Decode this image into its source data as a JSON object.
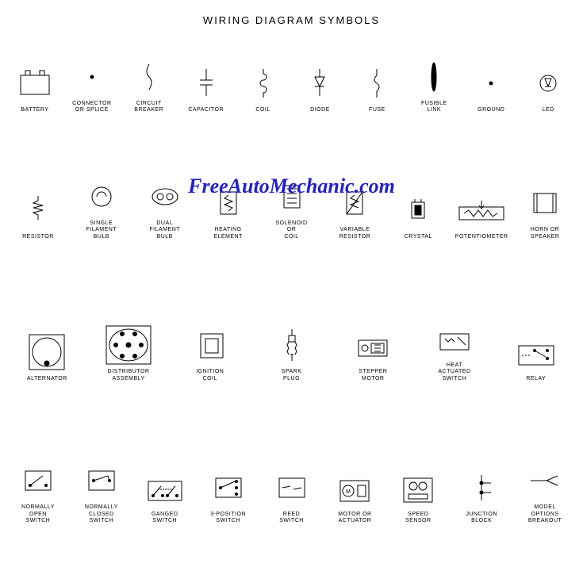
{
  "title": "WIRING DIAGRAM SYMBOLS",
  "watermark": "FreeAutoMechanic.com",
  "watermark_color": "#2020d0",
  "background_color": "#ffffff",
  "stroke_color": "#000000",
  "label_fontsize": 7,
  "title_fontsize": 13,
  "watermark_fontsize": 26,
  "rows": [
    {
      "gap": "sm",
      "items": [
        {
          "id": "battery",
          "label": "BATTERY",
          "svg": "battery"
        },
        {
          "id": "connector",
          "label": "CONNECTOR\nOR SPLICE",
          "svg": "dot"
        },
        {
          "id": "circuit-breaker",
          "label": "CIRCUIT\nBREAKER",
          "svg": "breaker"
        },
        {
          "id": "capacitor",
          "label": "CAPACITOR",
          "svg": "capacitor"
        },
        {
          "id": "coil",
          "label": "COIL",
          "svg": "coil"
        },
        {
          "id": "diode",
          "label": "DIODE",
          "svg": "diode"
        },
        {
          "id": "fuse",
          "label": "FUSE",
          "svg": "fuse"
        },
        {
          "id": "fusible-link",
          "label": "FUSIBLE\nLINK",
          "svg": "fusible"
        },
        {
          "id": "ground",
          "label": "GROUND",
          "svg": "dot"
        },
        {
          "id": "led",
          "label": "LED",
          "svg": "led"
        }
      ]
    },
    {
      "gap": "md",
      "items": [
        {
          "id": "resistor",
          "label": "RESISTOR",
          "svg": "resistor"
        },
        {
          "id": "single-filament",
          "label": "SINGLE\nFILAMENT\nBULB",
          "svg": "bulb1"
        },
        {
          "id": "dual-filament",
          "label": "DUAL\nFILAMENT\nBULB",
          "svg": "bulb2"
        },
        {
          "id": "heating-element",
          "label": "HEATING\nELEMENT",
          "svg": "heater"
        },
        {
          "id": "solenoid",
          "label": "SOLENOID\nOR\nCOIL",
          "svg": "solenoid"
        },
        {
          "id": "variable-resistor",
          "label": "VARIABLE\nRESISTOR",
          "svg": "varres"
        },
        {
          "id": "crystal",
          "label": "CRYSTAL",
          "svg": "crystal"
        },
        {
          "id": "potentiometer",
          "label": "POTENTIOMETER",
          "svg": "pot"
        },
        {
          "id": "horn-speaker",
          "label": "HORN OR\nSPEAKER",
          "svg": "speaker"
        }
      ]
    },
    {
      "gap": "lg",
      "items": [
        {
          "id": "alternator",
          "label": "ALTERNATOR",
          "svg": "alternator"
        },
        {
          "id": "distributor",
          "label": "DISTRIBUTOR\nASSEMBLY",
          "svg": "distributor"
        },
        {
          "id": "ignition-coil",
          "label": "IGNITION\nCOIL",
          "svg": "igncoil"
        },
        {
          "id": "spark-plug",
          "label": "SPARK\nPLUG",
          "svg": "sparkplug"
        },
        {
          "id": "stepper-motor",
          "label": "STEPPER\nMOTOR",
          "svg": "stepper"
        },
        {
          "id": "heat-actuated",
          "label": "HEAT\nACTUATED\nSWITCH",
          "svg": "heatsw"
        },
        {
          "id": "relay",
          "label": "RELAY",
          "svg": "relay"
        }
      ]
    },
    {
      "gap": "lg",
      "items": [
        {
          "id": "no-switch",
          "label": "NORMALLY\nOPEN\nSWITCH",
          "svg": "swopen"
        },
        {
          "id": "nc-switch",
          "label": "NORMALLY\nCLOSED\nSWITCH",
          "svg": "swclosed"
        },
        {
          "id": "ganged-switch",
          "label": "GANGED\nSWITCH",
          "svg": "swganged"
        },
        {
          "id": "3pos-switch",
          "label": "3-POSITION\nSWITCH",
          "svg": "sw3pos"
        },
        {
          "id": "reed-switch",
          "label": "REED\nSWITCH",
          "svg": "swreed"
        },
        {
          "id": "motor-actuator",
          "label": "MOTOR OR\nACTUATOR",
          "svg": "motor"
        },
        {
          "id": "speed-sensor",
          "label": "SPEED\nSENSOR",
          "svg": "speedsensor"
        },
        {
          "id": "junction-block",
          "label": "JUNCTION\nBLOCK",
          "svg": "junction"
        },
        {
          "id": "model-options",
          "label": "MODEL\nOPTIONS\nBREAKOUT",
          "svg": "breakout"
        }
      ]
    }
  ]
}
